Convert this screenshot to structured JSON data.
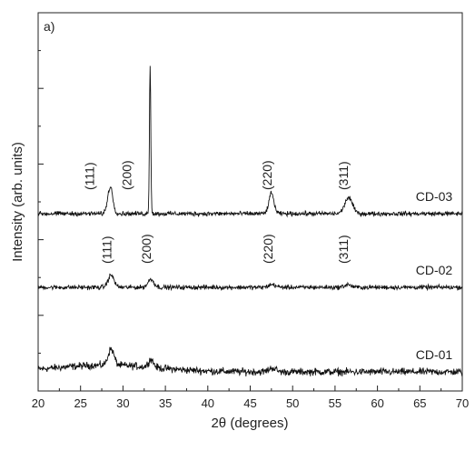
{
  "chart_data": {
    "type": "line",
    "panel_label": "a)",
    "xlabel": "2θ (degrees)",
    "ylabel": "Intensity (arb. units)",
    "xlim": [
      20,
      70
    ],
    "xticks": [
      20,
      25,
      30,
      35,
      40,
      45,
      50,
      55,
      60,
      65,
      70
    ],
    "y_tick_count": 10,
    "y_tick_labels_shown": false,
    "grid": false,
    "series": [
      {
        "name": "CD-01",
        "baseline": 0,
        "noise": 0.8,
        "peaks": [
          {
            "x": 28.6,
            "height": 1.2,
            "width": 0.35
          },
          {
            "x": 33.3,
            "height": 0.6,
            "width": 0.3
          },
          {
            "x": 47.6,
            "height": 0.3,
            "width": 0.4
          }
        ],
        "hkl_labels": []
      },
      {
        "name": "CD-02",
        "baseline": 1,
        "noise": 0.5,
        "peaks": [
          {
            "x": 28.6,
            "height": 0.9,
            "width": 0.35
          },
          {
            "x": 33.3,
            "height": 0.6,
            "width": 0.35
          },
          {
            "x": 47.6,
            "height": 0.2,
            "width": 0.4
          },
          {
            "x": 56.5,
            "height": 0.2,
            "width": 0.4
          }
        ],
        "hkl_labels": [
          {
            "text": "(111)",
            "x": 28.6
          },
          {
            "text": "(200)",
            "x": 33.3
          },
          {
            "text": "(220)",
            "x": 47.6
          },
          {
            "text": "(311)",
            "x": 56.5
          }
        ]
      },
      {
        "name": "CD-03",
        "baseline": 2,
        "noise": 0.5,
        "peaks": [
          {
            "x": 28.5,
            "height": 2.0,
            "width": 0.3
          },
          {
            "x": 33.2,
            "height": 11.0,
            "width": 0.08
          },
          {
            "x": 47.5,
            "height": 1.5,
            "width": 0.3
          },
          {
            "x": 56.6,
            "height": 1.2,
            "width": 0.45
          }
        ],
        "hkl_labels": [
          {
            "text": "(111)",
            "x": 26.6
          },
          {
            "text": "(200)",
            "x": 31.0
          },
          {
            "text": "(220)",
            "x": 47.5
          },
          {
            "text": "(311)",
            "x": 56.5
          }
        ]
      }
    ]
  }
}
